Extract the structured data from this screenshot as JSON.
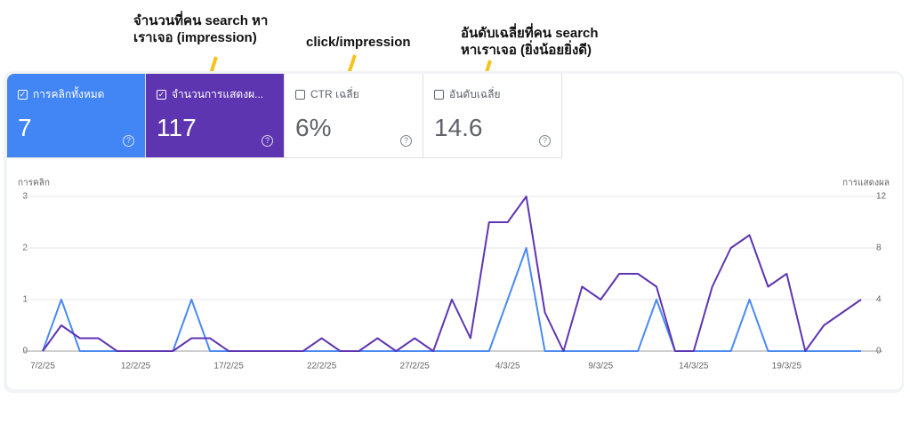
{
  "annotations": [
    {
      "lines": [
        "จำนวนที่คน search หา",
        "เราเจอ (impression)"
      ]
    },
    {
      "lines": [
        "click/impression"
      ]
    },
    {
      "lines": [
        "อันดับเฉลี่ยที่คน search",
        "หาเราเจอ (ยิ่งน้อยยิ่งดี)"
      ]
    }
  ],
  "cards": [
    {
      "label": "การคลิกทั้งหมด",
      "value": "7"
    },
    {
      "label": "จำนวนการแสดงผ...",
      "value": "117"
    },
    {
      "label": "CTR เฉลี่ย",
      "value": "6%"
    },
    {
      "label": "อันดับเฉลี่ย",
      "value": "14.6"
    }
  ],
  "chart_data": {
    "type": "line",
    "y_label": "การคลิก",
    "y2_label": "การแสดงผล",
    "categories": [
      "7/2/25",
      null,
      null,
      null,
      null,
      "12/2/25",
      null,
      null,
      null,
      null,
      "17/2/25",
      null,
      null,
      null,
      null,
      "22/2/25",
      null,
      null,
      null,
      null,
      "27/2/25",
      null,
      null,
      null,
      null,
      "4/3/25",
      null,
      null,
      null,
      null,
      "9/3/25",
      null,
      null,
      null,
      null,
      "14/3/25",
      null,
      null,
      null,
      null,
      "19/3/25",
      null,
      null,
      null,
      null
    ],
    "series": [
      {
        "color": "#4a8af4",
        "axis": "y",
        "values": [
          0,
          1,
          0,
          0,
          0,
          0,
          0,
          0,
          1,
          0,
          0,
          0,
          0,
          0,
          0,
          0,
          0,
          0,
          0,
          0,
          0,
          0,
          0,
          0,
          0,
          1,
          2,
          0,
          0,
          0,
          0,
          0,
          0,
          1,
          0,
          0,
          0,
          0,
          1,
          0,
          0,
          0,
          0,
          0,
          0
        ]
      },
      {
        "color": "#5e35b1",
        "axis": "y2",
        "values": [
          0,
          2,
          1,
          1,
          0,
          0,
          0,
          0,
          1,
          1,
          0,
          0,
          0,
          0,
          0,
          1,
          0,
          0,
          1,
          0,
          1,
          0,
          4,
          1,
          10,
          10,
          12,
          3,
          0,
          5,
          4,
          6,
          6,
          5,
          0,
          0,
          5,
          8,
          9,
          5,
          6,
          0,
          2,
          3,
          4
        ]
      }
    ],
    "ylim": [
      0,
      3
    ],
    "yticks": [
      0,
      1,
      2,
      3
    ],
    "y2lim": [
      0,
      12
    ],
    "y2ticks": [
      0,
      4,
      8,
      12
    ],
    "grid": true
  }
}
